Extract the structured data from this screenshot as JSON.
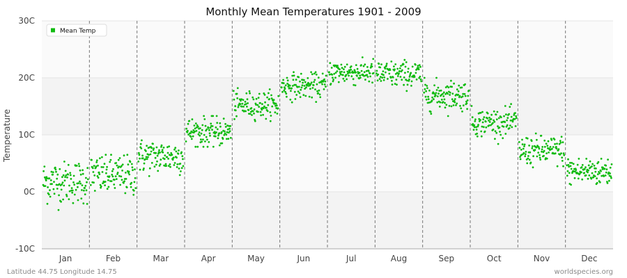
{
  "chart_data": {
    "type": "scatter",
    "title": "Monthly Mean Temperatures 1901 - 2009",
    "ylabel": "Temperature",
    "xlabel": "",
    "categories": [
      "Jan",
      "Feb",
      "Mar",
      "Apr",
      "May",
      "Jun",
      "Jul",
      "Aug",
      "Sep",
      "Oct",
      "Nov",
      "Dec"
    ],
    "yticks": [
      {
        "value": -10,
        "label": "-10C"
      },
      {
        "value": 0,
        "label": "0C"
      },
      {
        "value": 10,
        "label": "10C"
      },
      {
        "value": 20,
        "label": "20C"
      },
      {
        "value": 30,
        "label": "30C"
      }
    ],
    "ylim": [
      -10,
      30
    ],
    "grid": true,
    "legend": {
      "position": "top-left"
    },
    "series": [
      {
        "name": "Mean Temp",
        "color": "#11bb11",
        "years": [
          1901,
          2009
        ],
        "monthly_mean": [
          1.8,
          2.9,
          6.2,
          10.5,
          15.2,
          18.6,
          21.0,
          20.6,
          17.0,
          12.2,
          7.2,
          3.6
        ],
        "monthly_spread": [
          1.9,
          1.8,
          1.5,
          1.3,
          1.2,
          1.1,
          1.1,
          1.2,
          1.3,
          1.2,
          1.3,
          1.3
        ],
        "month_min": [
          -4.2,
          -2.5,
          2.7,
          7.9,
          12.4,
          15.5,
          17.9,
          17.7,
          13.2,
          8.4,
          3.3,
          -1.3
        ],
        "month_max": [
          5.3,
          6.5,
          10.3,
          13.3,
          18.2,
          21.0,
          23.6,
          24.4,
          20.0,
          15.4,
          11.0,
          5.8
        ]
      }
    ]
  },
  "footer": {
    "left": "Latitude 44.75 Longitude 14.75",
    "right": "worldspecies.org"
  }
}
